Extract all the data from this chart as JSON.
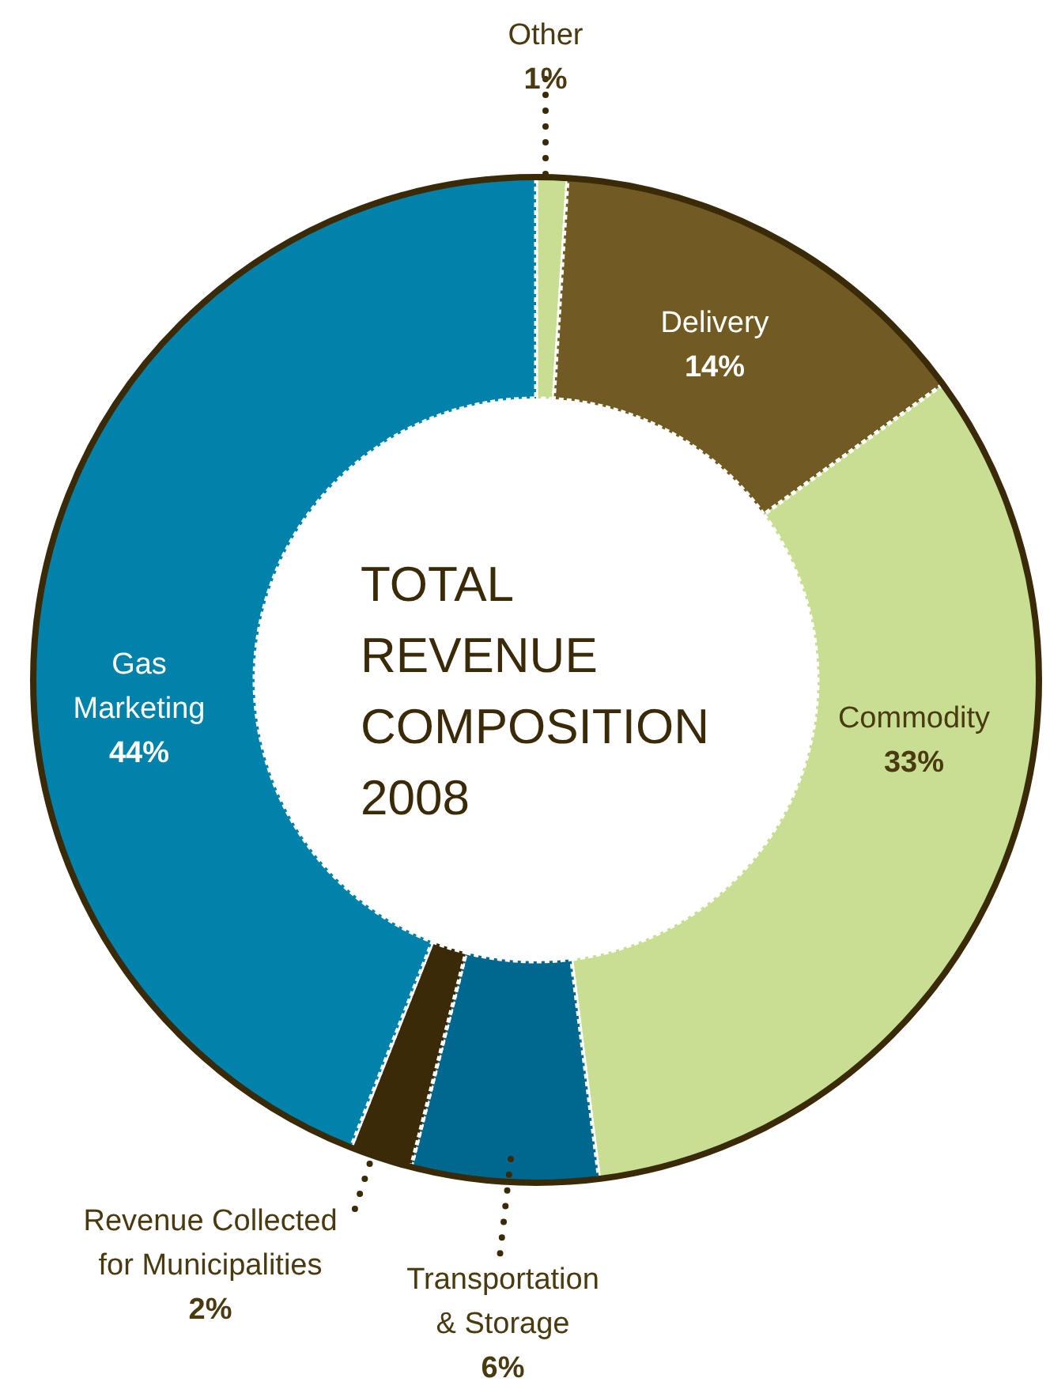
{
  "chart_data": {
    "type": "donut",
    "title": "TOTAL REVENUE COMPOSITION 2008",
    "categories": [
      "Other",
      "Delivery",
      "Commodity",
      "Transportation & Storage",
      "Revenue Collected for Municipalities",
      "Gas Marketing"
    ],
    "values": [
      1,
      14,
      33,
      6,
      2,
      44
    ],
    "colors": [
      "#c8de92",
      "#715b23",
      "#c8de92",
      "#00688f",
      "#3a2a08",
      "#0082ab"
    ],
    "value_labels": [
      "1%",
      "14%",
      "33%",
      "6%",
      "2%",
      "44%"
    ]
  }
}
